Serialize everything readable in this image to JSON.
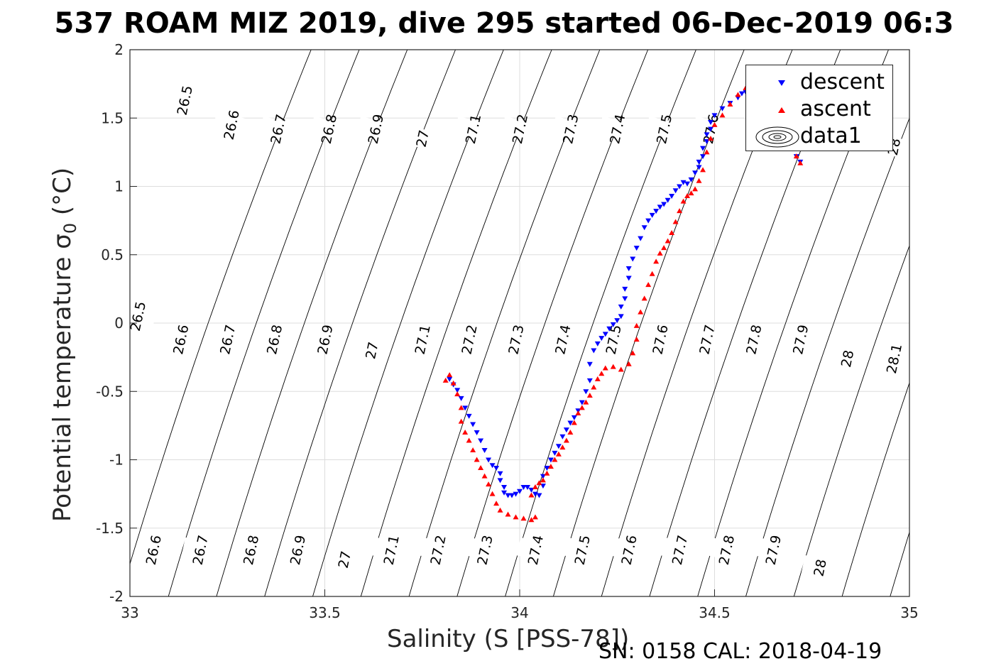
{
  "title": "537 ROAM MIZ 2019, dive 295 started 06-Dec-2019 06:3",
  "footer": "SN: 0158  CAL: 2018-04-19",
  "legend": {
    "descent": "descent",
    "ascent": "ascent",
    "data1": "data1"
  },
  "colors": {
    "descent": "#0000ff",
    "ascent": "#ff0000",
    "contour": "#000000",
    "grid": "#dddddd"
  },
  "chart_data": {
    "type": "scatter",
    "title": "537 ROAM MIZ 2019, dive 295 started 06-Dec-2019 06:3",
    "xlabel": "Salinity (S [PSS-78])",
    "ylabel_prefix": "Potential temperature σ",
    "ylabel_sub": "0",
    "ylabel_suffix": " (°C)",
    "xlim": [
      33,
      35
    ],
    "ylim": [
      -2,
      2
    ],
    "xticks": [
      33,
      33.5,
      34,
      34.5,
      35
    ],
    "xtick_labels": [
      "33",
      "33.5",
      "34",
      "34.5",
      "35"
    ],
    "yticks": [
      -2,
      -1.5,
      -1,
      -0.5,
      0,
      0.5,
      1,
      1.5,
      2
    ],
    "ytick_labels": [
      "-2",
      "-1.5",
      "-1",
      "-0.5",
      "0",
      "0.5",
      "1",
      "1.5",
      "2"
    ],
    "grid": true,
    "legend_position": "top-right",
    "isopycnal_levels": [
      26.5,
      26.6,
      26.7,
      26.8,
      26.9,
      27,
      27.1,
      27.2,
      27.3,
      27.4,
      27.5,
      27.6,
      27.7,
      27.8,
      27.9,
      28,
      28.1
    ],
    "isopycnal_labels": [
      {
        "level": "26.5",
        "s": 33.14,
        "t": 1.63
      },
      {
        "level": "26.6",
        "s": 33.26,
        "t": 1.45
      },
      {
        "level": "26.7",
        "s": 33.38,
        "t": 1.42
      },
      {
        "level": "26.8",
        "s": 33.51,
        "t": 1.42
      },
      {
        "level": "26.9",
        "s": 33.63,
        "t": 1.42
      },
      {
        "level": "27",
        "s": 33.75,
        "t": 1.35
      },
      {
        "level": "27.1",
        "s": 33.88,
        "t": 1.42
      },
      {
        "level": "27.2",
        "s": 34.0,
        "t": 1.42
      },
      {
        "level": "27.3",
        "s": 34.13,
        "t": 1.42
      },
      {
        "level": "27.4",
        "s": 34.25,
        "t": 1.42
      },
      {
        "level": "27.5",
        "s": 34.37,
        "t": 1.42
      },
      {
        "level": "27.6",
        "s": 34.49,
        "t": 1.42
      },
      {
        "level": "28",
        "s": 34.96,
        "t": 1.29
      },
      {
        "level": "26.5",
        "s": 33.02,
        "t": 0.05
      },
      {
        "level": "26.6",
        "s": 33.13,
        "t": -0.12
      },
      {
        "level": "26.7",
        "s": 33.25,
        "t": -0.12
      },
      {
        "level": "26.8",
        "s": 33.37,
        "t": -0.12
      },
      {
        "level": "26.9",
        "s": 33.5,
        "t": -0.12
      },
      {
        "level": "27",
        "s": 33.62,
        "t": -0.2
      },
      {
        "level": "27.1",
        "s": 33.75,
        "t": -0.12
      },
      {
        "level": "27.2",
        "s": 33.87,
        "t": -0.12
      },
      {
        "level": "27.3",
        "s": 33.99,
        "t": -0.12
      },
      {
        "level": "27.4",
        "s": 34.11,
        "t": -0.12
      },
      {
        "level": "27.5",
        "s": 34.24,
        "t": -0.12
      },
      {
        "level": "27.6",
        "s": 34.36,
        "t": -0.12
      },
      {
        "level": "27.7",
        "s": 34.48,
        "t": -0.12
      },
      {
        "level": "27.8",
        "s": 34.6,
        "t": -0.12
      },
      {
        "level": "27.9",
        "s": 34.72,
        "t": -0.12
      },
      {
        "level": "28",
        "s": 34.84,
        "t": -0.26
      },
      {
        "level": "28.1",
        "s": 34.96,
        "t": -0.26
      },
      {
        "level": "26.6",
        "s": 33.06,
        "t": -1.66
      },
      {
        "level": "26.7",
        "s": 33.18,
        "t": -1.66
      },
      {
        "level": "26.8",
        "s": 33.31,
        "t": -1.66
      },
      {
        "level": "26.9",
        "s": 33.43,
        "t": -1.66
      },
      {
        "level": "27",
        "s": 33.55,
        "t": -1.73
      },
      {
        "level": "27.1",
        "s": 33.67,
        "t": -1.66
      },
      {
        "level": "27.2",
        "s": 33.79,
        "t": -1.66
      },
      {
        "level": "27.3",
        "s": 33.91,
        "t": -1.66
      },
      {
        "level": "27.4",
        "s": 34.04,
        "t": -1.66
      },
      {
        "level": "27.5",
        "s": 34.16,
        "t": -1.66
      },
      {
        "level": "27.6",
        "s": 34.28,
        "t": -1.66
      },
      {
        "level": "27.7",
        "s": 34.41,
        "t": -1.66
      },
      {
        "level": "27.8",
        "s": 34.53,
        "t": -1.66
      },
      {
        "level": "27.9",
        "s": 34.65,
        "t": -1.66
      },
      {
        "level": "28",
        "s": 34.77,
        "t": -1.79
      }
    ],
    "series": [
      {
        "name": "descent",
        "marker": "triangle-down",
        "color": "#0000ff",
        "points": [
          [
            33.82,
            -0.41
          ],
          [
            33.83,
            -0.45
          ],
          [
            33.84,
            -0.49
          ],
          [
            33.85,
            -0.55
          ],
          [
            33.86,
            -0.62
          ],
          [
            33.87,
            -0.68
          ],
          [
            33.88,
            -0.74
          ],
          [
            33.89,
            -0.8
          ],
          [
            33.9,
            -0.86
          ],
          [
            33.91,
            -0.93
          ],
          [
            33.92,
            -1.0
          ],
          [
            33.93,
            -1.04
          ],
          [
            33.94,
            -1.06
          ],
          [
            33.95,
            -1.1
          ],
          [
            33.95,
            -1.15
          ],
          [
            33.96,
            -1.2
          ],
          [
            33.96,
            -1.24
          ],
          [
            33.97,
            -1.26
          ],
          [
            33.98,
            -1.26
          ],
          [
            33.99,
            -1.25
          ],
          [
            34.0,
            -1.23
          ],
          [
            34.01,
            -1.2
          ],
          [
            34.02,
            -1.2
          ],
          [
            34.03,
            -1.22
          ],
          [
            34.04,
            -1.25
          ],
          [
            34.05,
            -1.26
          ],
          [
            34.06,
            -1.19
          ],
          [
            34.06,
            -1.12
          ],
          [
            34.07,
            -1.06
          ],
          [
            34.08,
            -1.0
          ],
          [
            34.09,
            -0.95
          ],
          [
            34.1,
            -0.9
          ],
          [
            34.11,
            -0.83
          ],
          [
            34.12,
            -0.78
          ],
          [
            34.13,
            -0.73
          ],
          [
            34.14,
            -0.69
          ],
          [
            34.15,
            -0.64
          ],
          [
            34.16,
            -0.58
          ],
          [
            34.17,
            -0.5
          ],
          [
            34.18,
            -0.42
          ],
          [
            34.18,
            -0.3
          ],
          [
            34.19,
            -0.2
          ],
          [
            34.2,
            -0.15
          ],
          [
            34.21,
            -0.11
          ],
          [
            34.22,
            -0.08
          ],
          [
            34.23,
            -0.04
          ],
          [
            34.24,
            -0.01
          ],
          [
            34.25,
            0.02
          ],
          [
            34.26,
            0.05
          ],
          [
            34.26,
            0.12
          ],
          [
            34.27,
            0.18
          ],
          [
            34.27,
            0.25
          ],
          [
            34.28,
            0.33
          ],
          [
            34.28,
            0.4
          ],
          [
            34.29,
            0.47
          ],
          [
            34.3,
            0.55
          ],
          [
            34.31,
            0.62
          ],
          [
            34.32,
            0.7
          ],
          [
            34.33,
            0.75
          ],
          [
            34.34,
            0.79
          ],
          [
            34.35,
            0.82
          ],
          [
            34.36,
            0.85
          ],
          [
            34.37,
            0.87
          ],
          [
            34.38,
            0.9
          ],
          [
            34.39,
            0.93
          ],
          [
            34.4,
            0.97
          ],
          [
            34.41,
            1.0
          ],
          [
            34.42,
            1.03
          ],
          [
            34.43,
            1.02
          ],
          [
            34.44,
            1.05
          ],
          [
            34.45,
            1.1
          ],
          [
            34.46,
            1.14
          ],
          [
            34.46,
            1.18
          ],
          [
            34.47,
            1.22
          ],
          [
            34.47,
            1.28
          ],
          [
            34.48,
            1.33
          ],
          [
            34.48,
            1.38
          ],
          [
            34.49,
            1.42
          ],
          [
            34.49,
            1.47
          ],
          [
            34.5,
            1.52
          ],
          [
            34.52,
            1.57
          ],
          [
            34.54,
            1.61
          ],
          [
            34.56,
            1.65
          ],
          [
            34.57,
            1.68
          ],
          [
            34.58,
            1.69
          ],
          [
            34.59,
            1.67
          ],
          [
            34.6,
            1.62
          ],
          [
            34.61,
            1.58
          ],
          [
            34.62,
            1.54
          ],
          [
            34.64,
            1.52
          ],
          [
            34.66,
            1.5
          ],
          [
            34.68,
            1.47
          ],
          [
            34.69,
            1.42
          ],
          [
            34.7,
            1.36
          ],
          [
            34.71,
            1.28
          ],
          [
            34.71,
            1.22
          ],
          [
            34.72,
            1.18
          ]
        ]
      },
      {
        "name": "ascent",
        "marker": "triangle-up",
        "color": "#ff0000",
        "points": [
          [
            33.81,
            -0.42
          ],
          [
            33.82,
            -0.38
          ],
          [
            33.83,
            -0.44
          ],
          [
            33.84,
            -0.52
          ],
          [
            33.85,
            -0.62
          ],
          [
            33.85,
            -0.72
          ],
          [
            33.86,
            -0.8
          ],
          [
            33.87,
            -0.86
          ],
          [
            33.88,
            -0.93
          ],
          [
            33.89,
            -1.0
          ],
          [
            33.9,
            -1.06
          ],
          [
            33.91,
            -1.12
          ],
          [
            33.92,
            -1.18
          ],
          [
            33.93,
            -1.25
          ],
          [
            33.94,
            -1.32
          ],
          [
            33.95,
            -1.37
          ],
          [
            33.97,
            -1.4
          ],
          [
            33.99,
            -1.42
          ],
          [
            34.01,
            -1.43
          ],
          [
            34.03,
            -1.44
          ],
          [
            34.04,
            -1.42
          ],
          [
            34.03,
            -1.26
          ],
          [
            34.04,
            -1.2
          ],
          [
            34.05,
            -1.17
          ],
          [
            34.06,
            -1.15
          ],
          [
            34.07,
            -1.1
          ],
          [
            34.08,
            -1.05
          ],
          [
            34.09,
            -1.0
          ],
          [
            34.1,
            -0.96
          ],
          [
            34.11,
            -0.91
          ],
          [
            34.12,
            -0.86
          ],
          [
            34.13,
            -0.8
          ],
          [
            34.14,
            -0.73
          ],
          [
            34.15,
            -0.66
          ],
          [
            34.16,
            -0.62
          ],
          [
            34.17,
            -0.58
          ],
          [
            34.18,
            -0.53
          ],
          [
            34.19,
            -0.47
          ],
          [
            34.2,
            -0.41
          ],
          [
            34.21,
            -0.37
          ],
          [
            34.22,
            -0.33
          ],
          [
            34.24,
            -0.32
          ],
          [
            34.26,
            -0.34
          ],
          [
            34.28,
            -0.3
          ],
          [
            34.29,
            -0.22
          ],
          [
            34.3,
            -0.12
          ],
          [
            34.3,
            -0.02
          ],
          [
            34.31,
            0.08
          ],
          [
            34.32,
            0.18
          ],
          [
            34.33,
            0.28
          ],
          [
            34.34,
            0.36
          ],
          [
            34.35,
            0.45
          ],
          [
            34.36,
            0.51
          ],
          [
            34.37,
            0.55
          ],
          [
            34.38,
            0.6
          ],
          [
            34.39,
            0.66
          ],
          [
            34.4,
            0.74
          ],
          [
            34.41,
            0.82
          ],
          [
            34.42,
            0.89
          ],
          [
            34.43,
            0.93
          ],
          [
            34.44,
            0.95
          ],
          [
            34.45,
            0.98
          ],
          [
            34.46,
            1.04
          ],
          [
            34.47,
            1.12
          ],
          [
            34.48,
            1.25
          ],
          [
            34.49,
            1.35
          ],
          [
            34.5,
            1.45
          ],
          [
            34.52,
            1.52
          ],
          [
            34.54,
            1.6
          ],
          [
            34.56,
            1.67
          ],
          [
            34.58,
            1.72
          ],
          [
            34.6,
            1.74
          ],
          [
            34.62,
            1.72
          ],
          [
            34.64,
            1.66
          ],
          [
            34.66,
            1.6
          ],
          [
            34.68,
            1.52
          ],
          [
            34.7,
            1.42
          ],
          [
            34.71,
            1.32
          ],
          [
            34.71,
            1.22
          ],
          [
            34.72,
            1.17
          ]
        ]
      }
    ]
  }
}
